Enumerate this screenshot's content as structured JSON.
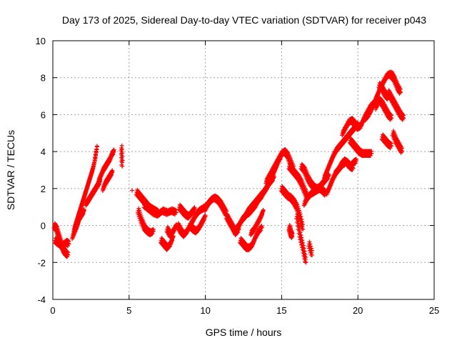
{
  "chart_data": {
    "type": "scatter",
    "title": "Day 173 of 2025, Sidereal Day-to-day VTEC variation (SDTVAR) for receiver p043",
    "xlabel": "GPS time / hours",
    "ylabel": "SDTVAR / TECUs",
    "xlim": [
      0,
      25
    ],
    "ylim": [
      -4,
      10
    ],
    "xticks": [
      "0",
      "5",
      "10",
      "15",
      "20",
      "25"
    ],
    "yticks": [
      "-4",
      "-2",
      "0",
      "2",
      "4",
      "6",
      "8",
      "10"
    ],
    "grid": true,
    "marker": "+",
    "series": [
      {
        "name": "SDTVAR",
        "color": "#ff0000",
        "tracks": [
          {
            "x": [
              0.1,
              0.25,
              0.4,
              0.55,
              0.7,
              0.85,
              1.0
            ],
            "y": [
              0.0,
              -0.2,
              -0.6,
              -1.0,
              -1.3,
              -1.5,
              -1.6
            ]
          },
          {
            "x": [
              0.15,
              0.3,
              0.45,
              0.6,
              0.75,
              0.9,
              1.05
            ],
            "y": [
              -0.8,
              -0.9,
              -1.0,
              -1.1,
              -1.0,
              -0.9,
              -1.0
            ]
          },
          {
            "x": [
              1.3,
              1.45,
              1.6,
              1.75,
              1.9,
              2.05
            ],
            "y": [
              -0.6,
              -0.3,
              0.0,
              0.4,
              0.6,
              0.8
            ]
          },
          {
            "x": [
              1.4,
              1.55,
              1.7,
              1.85,
              2.0,
              2.15,
              2.3,
              2.45,
              2.6,
              2.75,
              2.9
            ],
            "y": [
              -0.2,
              0.2,
              0.6,
              1.0,
              1.4,
              1.8,
              2.2,
              2.6,
              3.0,
              3.5,
              4.3
            ]
          },
          {
            "x": [
              2.2,
              2.35,
              2.5,
              2.65,
              2.8,
              2.95,
              3.1
            ],
            "y": [
              1.2,
              1.4,
              1.6,
              1.8,
              2.0,
              2.2,
              2.4
            ]
          },
          {
            "x": [
              3.0,
              3.15,
              3.3,
              3.45,
              3.6,
              3.75,
              3.9,
              4.0
            ],
            "y": [
              2.4,
              2.7,
              3.0,
              3.2,
              3.4,
              3.6,
              3.9,
              4.0
            ]
          },
          {
            "x": [
              3.3,
              3.45,
              3.6,
              3.75,
              3.9
            ],
            "y": [
              2.0,
              2.3,
              2.5,
              2.7,
              2.9
            ]
          },
          {
            "x": [
              4.5,
              4.55
            ],
            "y": [
              4.2,
              3.2
            ]
          },
          {
            "x": [
              5.2
            ],
            "y": [
              1.9
            ]
          },
          {
            "x": [
              5.5,
              5.7,
              5.9,
              6.1,
              6.3,
              6.5,
              6.7,
              6.9
            ],
            "y": [
              1.8,
              1.6,
              1.4,
              1.2,
              1.0,
              0.9,
              0.8,
              0.7
            ]
          },
          {
            "x": [
              5.6,
              5.8,
              6.0,
              6.2,
              6.4,
              6.6
            ],
            "y": [
              0.8,
              0.3,
              -0.1,
              -0.3,
              -0.4,
              -0.3
            ]
          },
          {
            "x": [
              6.0,
              6.3,
              6.6,
              6.9,
              7.2,
              7.5,
              7.8,
              8.1
            ],
            "y": [
              1.1,
              0.9,
              0.7,
              0.6,
              0.8,
              0.7,
              0.8,
              0.7
            ]
          },
          {
            "x": [
              7.1,
              7.3,
              7.5,
              7.7,
              7.9
            ],
            "y": [
              -0.8,
              -1.0,
              -1.2,
              -1.0,
              -0.6
            ]
          },
          {
            "x": [
              7.5,
              7.7,
              7.9,
              8.1
            ],
            "y": [
              -0.2,
              -0.5,
              -0.3,
              0.0
            ]
          },
          {
            "x": [
              8.2,
              8.4,
              8.6,
              8.8,
              9.0,
              9.2,
              9.4,
              9.6,
              9.8,
              10.0,
              10.2,
              10.4
            ],
            "y": [
              0.0,
              -0.3,
              -0.5,
              -0.3,
              0.0,
              0.3,
              0.6,
              0.8,
              0.9,
              1.0,
              1.2,
              1.4
            ]
          },
          {
            "x": [
              8.3,
              8.5,
              8.7,
              8.9,
              9.1,
              9.3
            ],
            "y": [
              1.0,
              0.8,
              0.6,
              0.5,
              0.7,
              0.9
            ]
          },
          {
            "x": [
              9.0,
              9.2,
              9.4,
              9.6,
              9.8,
              10.0
            ],
            "y": [
              0.0,
              -0.2,
              -0.3,
              -0.1,
              0.2,
              0.5
            ]
          },
          {
            "x": [
              10.0,
              10.2,
              10.4,
              10.6,
              10.8,
              11.0,
              11.2,
              11.4
            ],
            "y": [
              0.9,
              1.2,
              1.4,
              1.5,
              1.4,
              1.2,
              0.9,
              0.6
            ]
          },
          {
            "x": [
              11.4,
              11.6,
              11.8,
              12.0,
              12.2
            ],
            "y": [
              0.5,
              0.2,
              -0.1,
              -0.4,
              -0.2
            ]
          },
          {
            "x": [
              12.0,
              12.2,
              12.4,
              12.6,
              12.8,
              13.0,
              13.2,
              13.4,
              13.6,
              13.8,
              14.0,
              14.2,
              14.4,
              14.6,
              14.8,
              15.0
            ],
            "y": [
              -0.2,
              0.0,
              0.3,
              0.5,
              0.8,
              1.0,
              1.2,
              1.4,
              1.6,
              1.8,
              2.0,
              2.3,
              2.7,
              3.1,
              3.5,
              3.8
            ]
          },
          {
            "x": [
              12.3,
              12.5,
              12.7,
              12.9,
              13.1,
              13.3,
              13.5,
              13.7
            ],
            "y": [
              -0.8,
              -1.0,
              -1.2,
              -1.2,
              -1.0,
              -0.6,
              -0.3,
              -0.1
            ]
          },
          {
            "x": [
              12.5,
              12.7,
              12.9,
              13.1,
              13.3,
              13.5,
              13.7,
              13.9,
              14.1,
              14.3,
              14.5
            ],
            "y": [
              0.4,
              0.6,
              0.7,
              0.9,
              1.1,
              1.4,
              1.6,
              1.9,
              2.2,
              2.4,
              2.6
            ]
          },
          {
            "x": [
              13.0,
              13.2,
              13.4,
              13.6,
              13.8
            ],
            "y": [
              -0.4,
              -0.2,
              0.1,
              0.4,
              0.8
            ]
          },
          {
            "x": [
              14.0,
              14.2,
              14.4,
              14.6,
              14.8,
              15.0,
              15.2,
              15.4,
              15.6,
              15.8
            ],
            "y": [
              2.4,
              2.7,
              3.0,
              3.3,
              3.6,
              3.9,
              4.0,
              3.8,
              3.4,
              3.0
            ]
          },
          {
            "x": [
              15.0,
              15.2,
              15.4,
              15.6,
              15.8,
              16.0,
              16.2,
              16.4
            ],
            "y": [
              2.0,
              1.8,
              1.6,
              1.5,
              1.3,
              1.0,
              0.5,
              -0.2
            ]
          },
          {
            "x": [
              15.5,
              15.7,
              15.9,
              16.1,
              16.3,
              16.5,
              16.7
            ],
            "y": [
              3.2,
              3.0,
              2.8,
              2.6,
              2.3,
              1.9,
              1.5
            ]
          },
          {
            "x": [
              16.0,
              16.2,
              16.4,
              16.6
            ],
            "y": [
              0.5,
              -0.5,
              -1.2,
              -2.0
            ]
          },
          {
            "x": [
              15.5,
              15.6,
              15.7
            ],
            "y": [
              -0.1,
              -0.4,
              -0.6
            ]
          },
          {
            "x": [
              16.8,
              17.0
            ],
            "y": [
              -1.0,
              -1.6
            ]
          },
          {
            "x": [
              16.3,
              16.5,
              16.7,
              16.9,
              17.1,
              17.3,
              17.5,
              17.7,
              17.9,
              18.1
            ],
            "y": [
              3.2,
              3.0,
              2.6,
              2.3,
              2.1,
              2.0,
              2.1,
              2.3,
              2.5,
              2.7
            ]
          },
          {
            "x": [
              16.5,
              16.7,
              16.9,
              17.1,
              17.3,
              17.5,
              17.7,
              17.9
            ],
            "y": [
              1.2,
              1.5,
              1.7,
              1.8,
              1.9,
              2.0,
              1.9,
              1.7
            ]
          },
          {
            "x": [
              17.8,
              18.0,
              18.2,
              18.4,
              18.6,
              18.8,
              19.0,
              19.2,
              19.4,
              19.6,
              19.8,
              20.0
            ],
            "y": [
              2.6,
              3.0,
              3.4,
              3.8,
              4.1,
              4.3,
              4.5,
              4.7,
              4.9,
              5.1,
              5.3,
              5.5
            ]
          },
          {
            "x": [
              18.0,
              18.2,
              18.4,
              18.6,
              18.8,
              19.0,
              19.2
            ],
            "y": [
              1.8,
              2.2,
              2.6,
              2.9,
              3.1,
              3.3,
              3.4
            ]
          },
          {
            "x": [
              18.5,
              18.7,
              18.9,
              19.1,
              19.3,
              19.5,
              19.7
            ],
            "y": [
              2.8,
              3.0,
              3.3,
              3.5,
              3.4,
              3.2,
              3.1
            ]
          },
          {
            "x": [
              19.0,
              19.2,
              19.4,
              19.6,
              19.8,
              20.0,
              20.2,
              20.4,
              20.6,
              20.8,
              21.0
            ],
            "y": [
              5.0,
              5.3,
              5.6,
              5.7,
              5.5,
              5.3,
              5.4,
              5.8,
              6.1,
              6.4,
              6.6
            ]
          },
          {
            "x": [
              19.5,
              19.7,
              19.9,
              20.1,
              20.3,
              20.5,
              20.7,
              20.9
            ],
            "y": [
              4.6,
              4.4,
              4.2,
              4.0,
              3.9,
              3.9,
              3.9,
              3.9
            ]
          },
          {
            "x": [
              20.5,
              20.7,
              20.9,
              21.1,
              21.3,
              21.5,
              21.7,
              21.9,
              22.1,
              22.3
            ],
            "y": [
              5.8,
              6.0,
              6.3,
              6.7,
              7.1,
              7.5,
              7.8,
              8.1,
              8.2,
              8.0
            ]
          },
          {
            "x": [
              21.2,
              21.4,
              21.6,
              21.8,
              22.0,
              22.2
            ],
            "y": [
              6.4,
              6.8,
              6.6,
              6.3,
              6.0,
              5.8
            ]
          },
          {
            "x": [
              22.2,
              22.4,
              22.6,
              22.8
            ],
            "y": [
              8.2,
              7.9,
              7.5,
              7.2
            ]
          },
          {
            "x": [
              22.0,
              22.2,
              22.4,
              22.6,
              22.8,
              23.0
            ],
            "y": [
              7.2,
              6.9,
              6.6,
              6.3,
              6.0,
              5.8
            ]
          },
          {
            "x": [
              21.6,
              21.8,
              22.0,
              22.2
            ],
            "y": [
              4.8,
              4.6,
              4.4,
              4.3
            ]
          },
          {
            "x": [
              22.3,
              22.5,
              22.7,
              22.9
            ],
            "y": [
              5.0,
              4.6,
              4.3,
              4.0
            ]
          },
          {
            "x": [
              21.4,
              21.6,
              21.8,
              22.0
            ],
            "y": [
              7.6,
              7.4,
              7.1,
              6.9
            ]
          },
          {
            "x": [
              19.5,
              19.7,
              19.9
            ],
            "y": [
              3.2,
              3.4,
              3.5
            ]
          }
        ]
      }
    ]
  }
}
